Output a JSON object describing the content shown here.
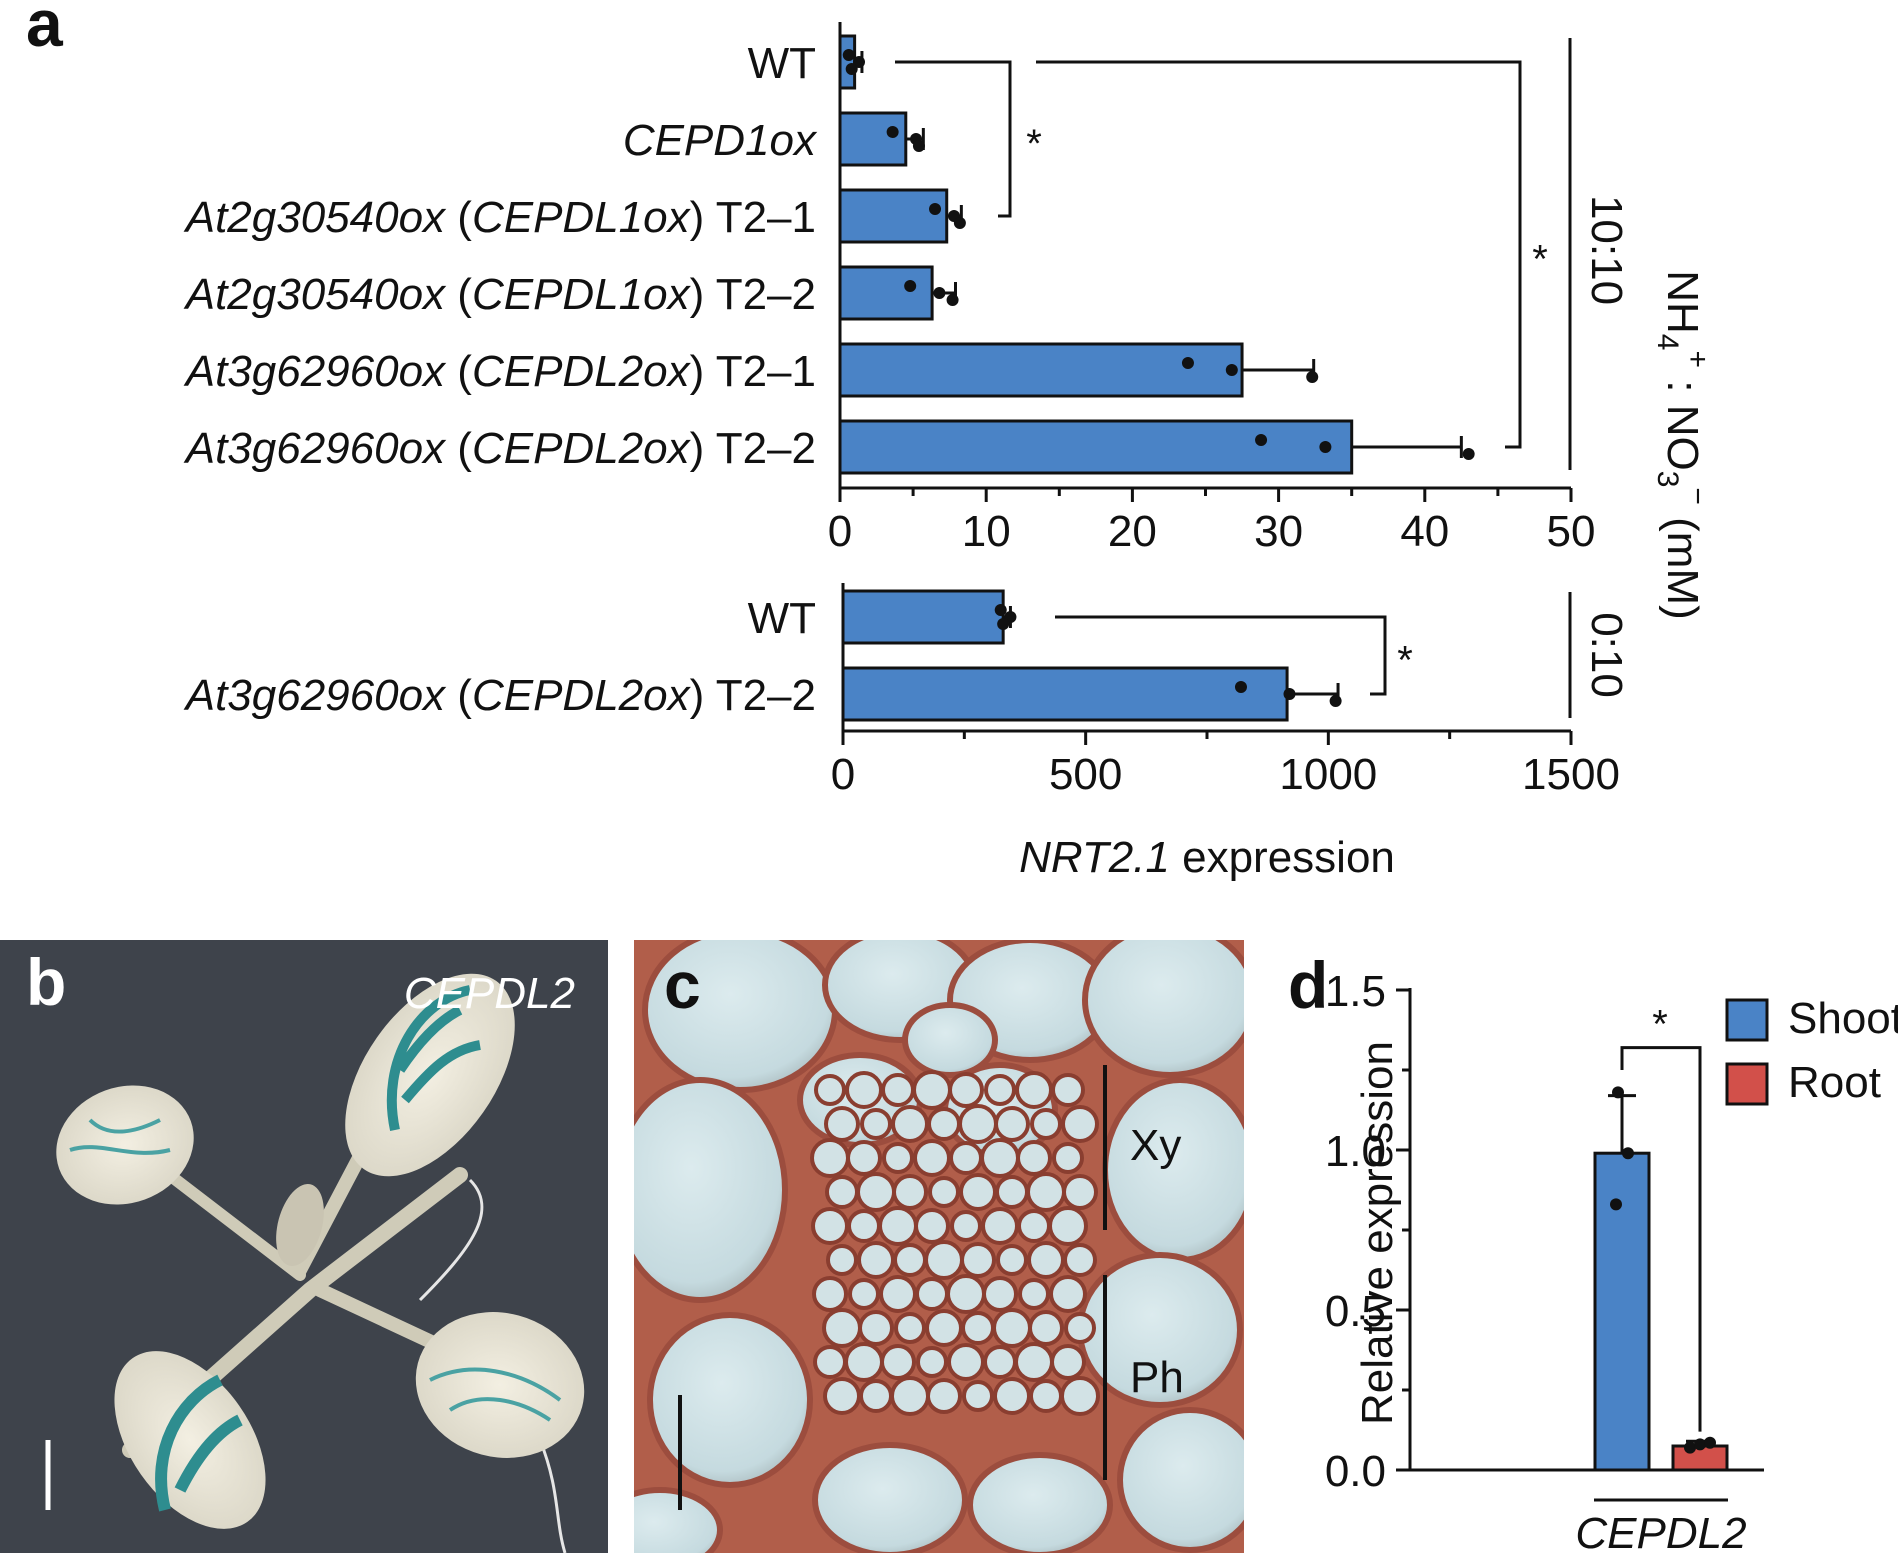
{
  "panels": {
    "a": {
      "letter": "a"
    },
    "b": {
      "letter": "b",
      "label": "CEPDL2"
    },
    "c": {
      "letter": "c",
      "xy_label": "Xy",
      "ph_label": "Ph"
    },
    "d": {
      "letter": "d"
    }
  },
  "colors": {
    "shoot": "#4a83c6",
    "root": "#d2504a",
    "bar_a": "#4a83c6",
    "photo_b_bg": "#3e434b",
    "photo_c_bg": "#bfd3d8",
    "cell_wall": "#9c4d3e"
  },
  "chart_data": [
    {
      "id": "a-top",
      "type": "bar",
      "orientation": "horizontal",
      "categories": [
        "WT",
        "CEPD1ox",
        "At2g30540ox (CEPDL1ox) T2–1",
        "At2g30540ox (CEPDL1ox) T2–2",
        "At3g62960ox (CEPDL2ox) T2–1",
        "At3g62960ox (CEPDL2ox) T2–2"
      ],
      "values": [
        1,
        4.5,
        7.3,
        6.3,
        27.5,
        35
      ],
      "errors": [
        0.5,
        1.2,
        1.0,
        1.6,
        4.9,
        7.5
      ],
      "points": [
        [
          0.6,
          1.3,
          0.8
        ],
        [
          3.6,
          5.2,
          5.4
        ],
        [
          6.5,
          7.8,
          8.2
        ],
        [
          4.8,
          6.8,
          7.7
        ],
        [
          23.8,
          26.8,
          32.3
        ],
        [
          28.8,
          33.2,
          43
        ]
      ],
      "xlim": [
        0,
        50
      ],
      "ticks": [
        0,
        10,
        20,
        30,
        40,
        50
      ],
      "tick_labels": [
        "0",
        "10",
        "20",
        "30",
        "40",
        "50"
      ],
      "ratio_label": "10:10",
      "significance": [
        {
          "from": "WT",
          "to": "At2g30540ox (CEPDL1ox) T2–1",
          "label": "*"
        },
        {
          "from": "WT",
          "to": "At3g62960ox (CEPDL2ox) T2–2",
          "label": "*"
        }
      ]
    },
    {
      "id": "a-bottom",
      "type": "bar",
      "orientation": "horizontal",
      "categories": [
        "WT",
        "At3g62960ox (CEPDL2ox) T2–2"
      ],
      "values": [
        330,
        915
      ],
      "errors": [
        15,
        105
      ],
      "points": [
        [
          325,
          345,
          330
        ],
        [
          820,
          920,
          1015
        ]
      ],
      "xlim": [
        0,
        1500
      ],
      "ticks": [
        0,
        500,
        1000,
        1500
      ],
      "tick_labels": [
        "0",
        "500",
        "1000",
        "1500"
      ],
      "ratio_label": "0:10",
      "xlabel_italic": "NRT2.1",
      "xlabel_rest": " expression",
      "significance": [
        {
          "from": "WT",
          "to": "At3g62960ox (CEPDL2ox) T2–2",
          "label": "*"
        }
      ]
    },
    {
      "id": "a-side-label",
      "ylabel_parts": [
        "NH",
        "4",
        "+",
        " : NO",
        "3",
        "−",
        " (mM)"
      ]
    },
    {
      "id": "d",
      "type": "bar",
      "categories": [
        "CEPDL2"
      ],
      "series": [
        {
          "name": "Shoot",
          "value": 0.99,
          "error": 0.18,
          "points": [
            1.18,
            0.99,
            0.83
          ]
        },
        {
          "name": "Root",
          "value": 0.075,
          "error": 0.015,
          "points": [
            0.07,
            0.08,
            0.085
          ]
        }
      ],
      "ylabel": "Relative expression",
      "ylim": [
        0,
        1.5
      ],
      "ticks": [
        0,
        0.5,
        1.0,
        1.5
      ],
      "tick_labels": [
        "0.0",
        "0.5",
        "1.0",
        "1.5"
      ],
      "legend": [
        "Shoot",
        "Root"
      ],
      "legend_position": "top-right",
      "significance": [
        {
          "from": "Shoot",
          "to": "Root",
          "label": "*"
        }
      ]
    }
  ]
}
